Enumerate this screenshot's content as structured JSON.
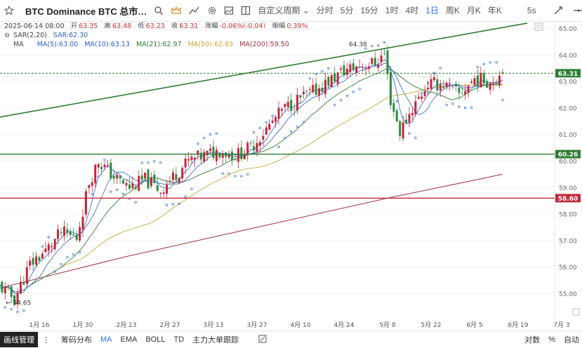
{
  "toolbar": {
    "icons": [
      "star-icon",
      "crown-icon",
      "indicator-icon",
      "gear-icon",
      "snapshot-icon",
      "layout-icon",
      "fullscreen-icon",
      "draw-icon",
      "hline-icon",
      "menu-icon"
    ],
    "title": "BTC Dominance BTC 总市…",
    "custom_period": "自定义周期",
    "periods": [
      "分时",
      "5分",
      "15分",
      "1时",
      "4时",
      "1日",
      "周K",
      "月K",
      "年K"
    ],
    "active_period": "1日",
    "right_label": "5s"
  },
  "info": {
    "date": "2025-06-14 08:00",
    "open_label": "开",
    "open": "63.35",
    "high_label": "高",
    "high": "63.48",
    "low_label": "低",
    "low": "63.23",
    "close_label": "收",
    "close": "63.31",
    "change_label": "涨幅",
    "change": "-0.06%(-0.04)",
    "amp_label": "振幅",
    "amp": "0.39%",
    "sar_name": "SAR(2,20)",
    "sar_value": "SAR:62.30",
    "ma_name": "MA",
    "ma5": "MA(5):63.00",
    "ma10": "MA(10):63.13",
    "ma21": "MA(21):62.97",
    "ma50": "MA(50):62.83",
    "ma200": "MA(200):59.50"
  },
  "colors": {
    "up": "#c2273b",
    "down": "#2b8a3e",
    "ma5": "#2c5fd0",
    "ma10": "#2c5fd0",
    "ma21": "#2e7d32",
    "ma50": "#c9a43a",
    "ma200": "#a0303c",
    "sar": "#4a7fd0",
    "support": "#2e7d32",
    "resistance": "#c2273b"
  },
  "chart_data": {
    "type": "candlestick",
    "x_ticks": [
      "1月 16",
      "1月 30",
      "2月 13",
      "2月 27",
      "3月 13",
      "3月 27",
      "4月 10",
      "4月 24",
      "5月 8",
      "5月 22",
      "6月 5",
      "6月 19",
      "7月 3"
    ],
    "y_ticks": [
      "65.00",
      "64.00",
      "63.00",
      "62.00",
      "61.00",
      "60.00",
      "59.00",
      "58.00",
      "57.00",
      "56.00",
      "55.00"
    ],
    "ylim": [
      54.4,
      65.3
    ],
    "annotations": {
      "high": "64.38",
      "low": "← 54.65"
    },
    "levels": [
      {
        "label": "63.31",
        "value": 63.31,
        "style": "dashed"
      },
      {
        "label": "60.26",
        "value": 60.26,
        "style": "support"
      },
      {
        "label": "58.60",
        "value": 58.6,
        "style": "resistance"
      }
    ],
    "trendline": {
      "start": [
        "2025-01-03",
        61.65
      ],
      "end": [
        "2025-06-22",
        65.2
      ]
    },
    "anchors": [
      [
        "2025-01-03",
        55.3
      ],
      [
        "2025-01-08",
        54.8
      ],
      [
        "2025-01-13",
        56.1
      ],
      [
        "2025-01-18",
        56.6
      ],
      [
        "2025-01-23",
        57.3
      ],
      [
        "2025-01-28",
        57.1
      ],
      [
        "2025-02-01",
        59.2
      ],
      [
        "2025-02-04",
        60.0
      ],
      [
        "2025-02-09",
        59.4
      ],
      [
        "2025-02-14",
        59.0
      ],
      [
        "2025-02-19",
        59.3
      ],
      [
        "2025-02-24",
        58.9
      ],
      [
        "2025-02-28",
        59.4
      ],
      [
        "2025-03-05",
        60.0
      ],
      [
        "2025-03-10",
        60.2
      ],
      [
        "2025-03-15",
        60.4
      ],
      [
        "2025-03-20",
        60.2
      ],
      [
        "2025-03-25",
        60.5
      ],
      [
        "2025-03-30",
        61.2
      ],
      [
        "2025-04-04",
        61.9
      ],
      [
        "2025-04-09",
        62.3
      ],
      [
        "2025-04-14",
        62.6
      ],
      [
        "2025-04-19",
        63.0
      ],
      [
        "2025-04-24",
        63.4
      ],
      [
        "2025-04-29",
        63.6
      ],
      [
        "2025-05-04",
        63.7
      ],
      [
        "2025-05-07",
        64.05
      ],
      [
        "2025-05-09",
        62.3
      ],
      [
        "2025-05-12",
        61.1
      ],
      [
        "2025-05-16",
        62.0
      ],
      [
        "2025-05-21",
        62.9
      ],
      [
        "2025-05-26",
        62.9
      ],
      [
        "2025-05-31",
        62.5
      ],
      [
        "2025-06-05",
        63.1
      ],
      [
        "2025-06-10",
        63.0
      ],
      [
        "2025-06-14",
        63.31
      ]
    ],
    "ma200": [
      [
        "2025-01-03",
        55.2
      ],
      [
        "2025-02-13",
        56.4
      ],
      [
        "2025-03-27",
        57.5
      ],
      [
        "2025-05-08",
        58.6
      ],
      [
        "2025-06-14",
        59.5
      ]
    ]
  },
  "bottombar": {
    "button": "画线管理",
    "items": [
      "筹码分布",
      "MA",
      "EMA",
      "BOLL",
      "TD",
      "主力大单跟踪"
    ],
    "active": "MA",
    "right": [
      "对数",
      "%",
      "自动"
    ]
  }
}
